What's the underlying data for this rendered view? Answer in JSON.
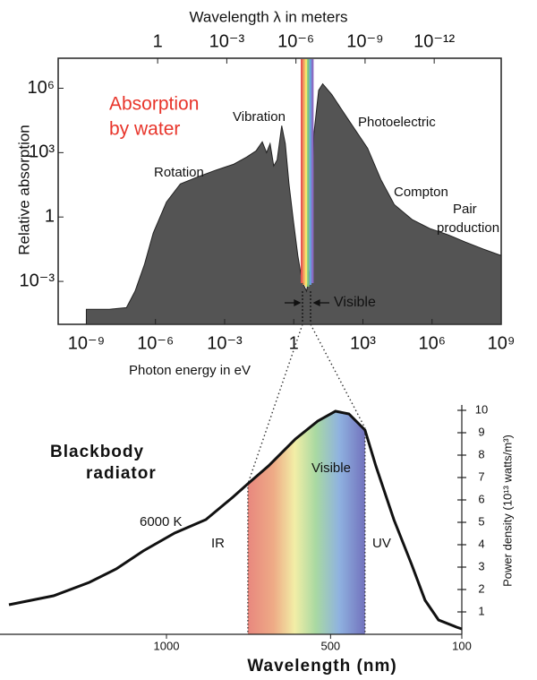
{
  "chart_data": [
    {
      "type": "area",
      "x2label": "Wavelength λ in meters",
      "ylabel": "Relative  absorption",
      "xlabel": "Photon energy in eV",
      "xscale": "log",
      "yscale": "log",
      "color": "#545454",
      "xlim": [
        6e-11,
        1000000000.0
      ],
      "xticks": [
        {
          "value": 1e-09,
          "label": "10⁻⁹"
        },
        {
          "value": 1e-06,
          "label": "10⁻⁶"
        },
        {
          "value": 0.001,
          "label": "10⁻³"
        },
        1,
        {
          "value": 1000,
          "label": "10³"
        },
        {
          "value": 1000000.0,
          "label": "10⁶"
        },
        {
          "value": 1000000000.0,
          "label": "10⁹"
        }
      ],
      "x2lim": [
        20700,
        1.24e-15
      ],
      "x2ticks": [
        1,
        {
          "value": 0.001,
          "label": "10⁻³"
        },
        {
          "value": 1e-06,
          "label": "10⁻⁶"
        },
        {
          "value": 1e-09,
          "label": "10⁻⁹"
        },
        {
          "value": 1e-12,
          "label": "10⁻¹²"
        }
      ],
      "ylim": [
        1e-05,
        25000000.0
      ],
      "yticks": [
        {
          "value": 0.001,
          "label": "10⁻³"
        },
        1,
        {
          "value": 1000,
          "label": "10³"
        },
        {
          "value": 1000000.0,
          "label": "10⁶"
        }
      ],
      "x": [
        1e-09,
        1e-08,
        5.5e-08,
        1.3e-07,
        3.3e-07,
        8e-07,
        3e-06,
        1.2e-05,
        7e-05,
        0.0004,
        0.0025,
        0.009,
        0.023,
        0.043,
        0.066,
        0.094,
        0.135,
        0.19,
        0.3,
        0.43,
        0.62,
        0.95,
        1.5,
        2.35,
        3.6,
        5.2,
        7.4,
        12,
        18,
        45,
        260,
        1600,
        6000,
        23000,
        140000,
        800000,
        4800000,
        28000000,
        170000000,
        1000000000
      ],
      "values": [
        5e-05,
        5e-05,
        6e-05,
        0.00035,
        0.006,
        0.18,
        5,
        35,
        75,
        150,
        290,
        620,
        1200,
        3200,
        1000,
        2600,
        240,
        460,
        18000,
        2600,
        35,
        0.75,
        0.016,
        0.0009,
        0.00035,
        0.0038,
        6800,
        800000,
        1600000,
        500000,
        29000,
        1600,
        56,
        3.8,
        0.75,
        0.29,
        0.15,
        0.068,
        0.032,
        0.016
      ],
      "annotations": [
        "Absorption",
        "by water",
        "Vibration",
        "Rotation",
        "Photoelectric",
        "Compton",
        "Pair",
        "production",
        "Visible"
      ]
    },
    {
      "type": "line",
      "title": [
        "Blackbody",
        "radiator"
      ],
      "xlabel": "Wavelength (nm)",
      "ylabel": "Power density (10¹³ watts/m³)",
      "color": "#111111",
      "xlim": [
        1480,
        100
      ],
      "xticks": [
        1000,
        500,
        100
      ],
      "ylim": [
        0,
        10.2
      ],
      "yticks": [
        1,
        2,
        3,
        4,
        5,
        6,
        7,
        8,
        9,
        10
      ],
      "x": [
        1480,
        1344,
        1235,
        1153,
        1071,
        975,
        880,
        798,
        752,
        689,
        607,
        539,
        485,
        444,
        395,
        362,
        307,
        253,
        212,
        171,
        116,
        100
      ],
      "values": [
        1.32,
        1.72,
        2.32,
        2.92,
        3.72,
        4.52,
        5.12,
        6.12,
        6.72,
        7.52,
        8.72,
        9.52,
        9.96,
        9.84,
        9.12,
        7.52,
        5.12,
        3.12,
        1.52,
        0.64,
        0.32,
        0.24
      ],
      "visible_band": [
        752,
        395
      ],
      "annotations": [
        "Visible",
        "6000 K",
        "IR",
        "UV"
      ]
    }
  ]
}
